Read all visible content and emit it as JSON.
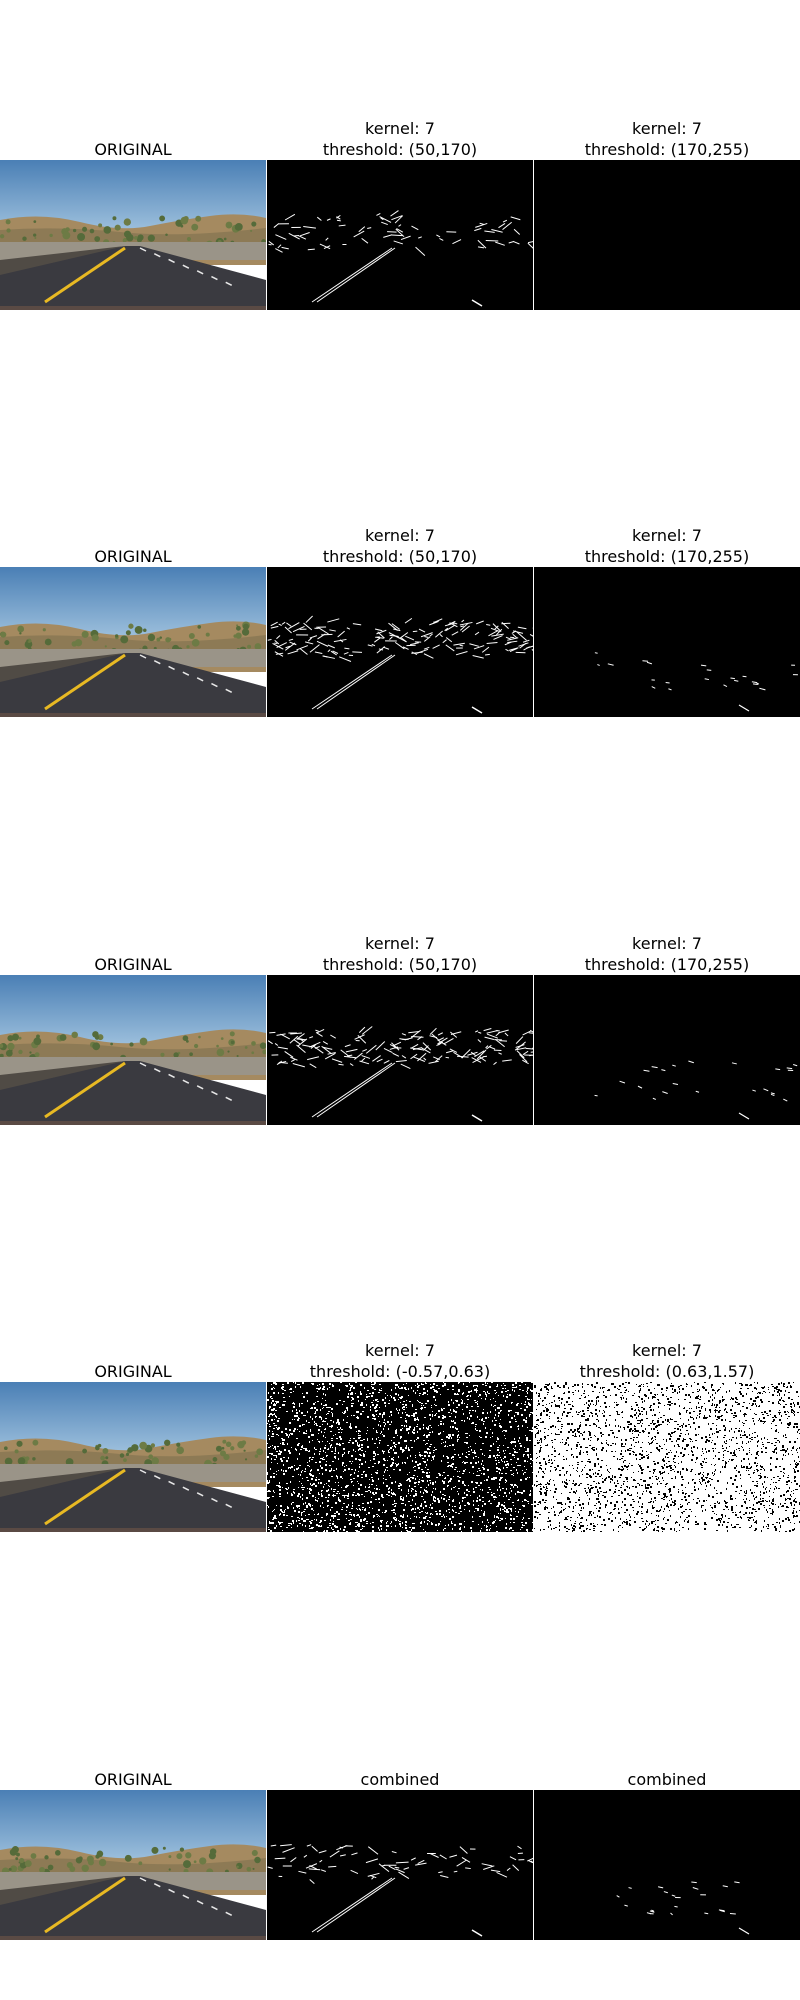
{
  "rows": [
    {
      "cells": [
        {
          "title": "ORIGINAL",
          "image": "original-road-photo"
        },
        {
          "title": "kernel: 7\nthreshold: (50,170)",
          "image": "edge-mask-sparse"
        },
        {
          "title": "kernel: 7\nthreshold: (170,255)",
          "image": "empty-mask"
        }
      ]
    },
    {
      "cells": [
        {
          "title": "ORIGINAL",
          "image": "original-road-photo"
        },
        {
          "title": "kernel: 7\nthreshold: (50,170)",
          "image": "edge-mask-dense"
        },
        {
          "title": "kernel: 7\nthreshold: (170,255)",
          "image": "edge-mask-faint"
        }
      ]
    },
    {
      "cells": [
        {
          "title": "ORIGINAL",
          "image": "original-road-photo"
        },
        {
          "title": "kernel: 7\nthreshold: (50,170)",
          "image": "edge-mask-dense"
        },
        {
          "title": "kernel: 7\nthreshold: (170,255)",
          "image": "edge-mask-faint"
        }
      ]
    },
    {
      "cells": [
        {
          "title": "ORIGINAL",
          "image": "original-road-photo"
        },
        {
          "title": "kernel: 7\nthreshold: (-0.57,0.63)",
          "image": "noise-mask-dark"
        },
        {
          "title": "kernel: 7\nthreshold: (0.63,1.57)",
          "image": "noise-mask-light"
        }
      ]
    },
    {
      "cells": [
        {
          "title": "ORIGINAL",
          "image": "original-road-photo"
        },
        {
          "title": "combined",
          "image": "edge-mask-sparse"
        },
        {
          "title": "combined",
          "image": "edge-mask-faint"
        }
      ]
    }
  ]
}
